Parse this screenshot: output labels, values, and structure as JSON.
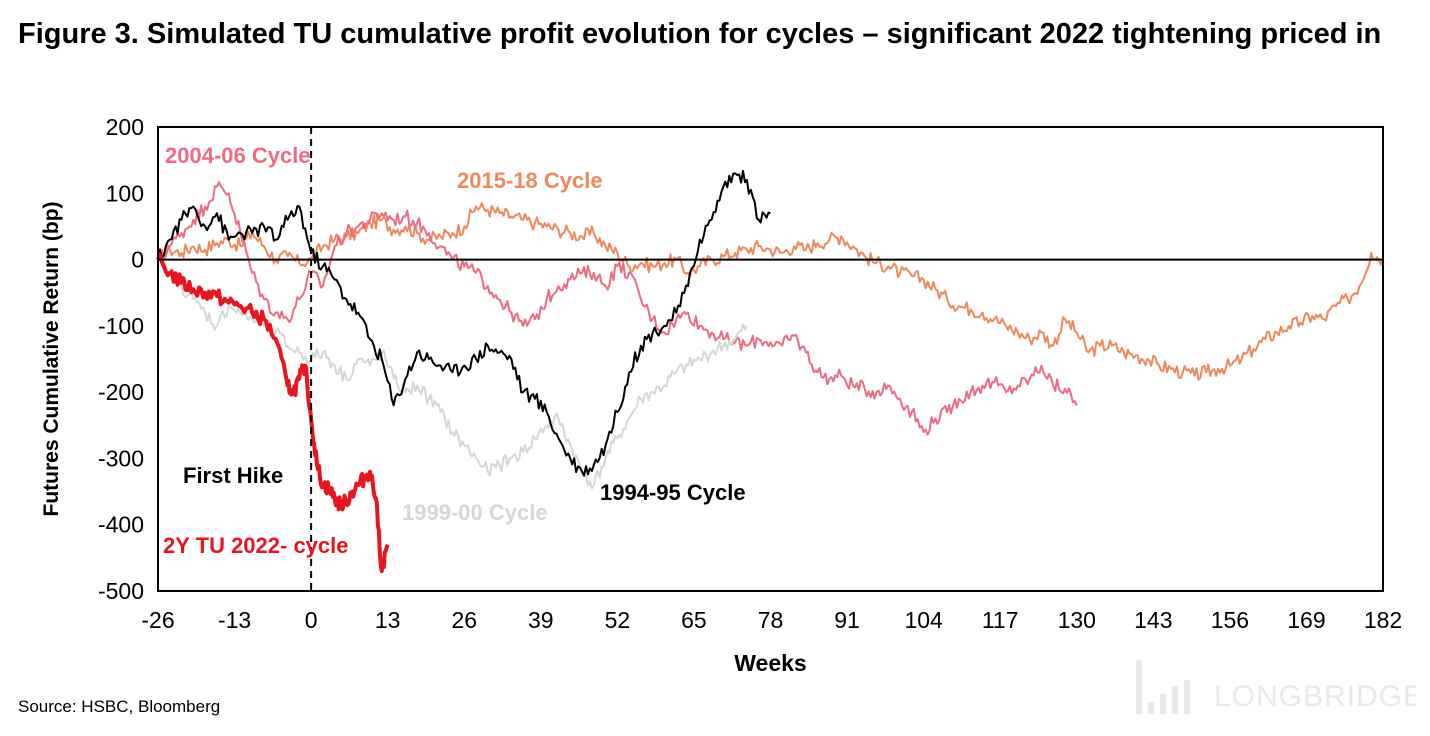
{
  "title": "Figure 3. Simulated TU cumulative profit evolution for cycles – significant 2022 tightening priced in",
  "source": "Source: HSBC, Bloomberg",
  "watermark": "LONGBRIDGE",
  "chart_data": {
    "type": "line",
    "xlabel": "Weeks",
    "ylabel": "Futures Cumulative Return (bp)",
    "xlim": [
      -26,
      182
    ],
    "ylim": [
      -500,
      200
    ],
    "xticks": [
      -26,
      -13,
      0,
      13,
      26,
      39,
      52,
      65,
      78,
      91,
      104,
      117,
      130,
      143,
      156,
      169,
      182
    ],
    "yticks": [
      200,
      100,
      0,
      -100,
      -200,
      -300,
      -400,
      -500
    ],
    "zero_line": true,
    "grid": false,
    "vline": {
      "x": 0,
      "label": "First Hike"
    },
    "series": [
      {
        "name": "2015-18 Cycle",
        "color": "#f0885e",
        "width": 2,
        "x": [
          -26,
          -24,
          -22,
          -20,
          -18,
          -16,
          -14,
          -12,
          -10,
          -8,
          -6,
          -4,
          -2,
          0,
          2,
          4,
          6,
          8,
          10,
          12,
          14,
          16,
          18,
          20,
          22,
          24,
          26,
          28,
          30,
          32,
          34,
          36,
          38,
          40,
          42,
          44,
          46,
          48,
          50,
          52,
          54,
          56,
          58,
          60,
          62,
          64,
          66,
          68,
          70,
          72,
          74,
          76,
          78,
          80,
          82,
          84,
          86,
          88,
          90,
          92,
          94,
          96,
          98,
          100,
          102,
          104,
          106,
          108,
          110,
          112,
          114,
          116,
          118,
          120,
          122,
          124,
          126,
          128,
          130,
          132,
          134,
          136,
          138,
          140,
          142,
          144,
          146,
          148,
          150,
          152,
          154,
          156,
          158,
          160,
          162,
          164,
          166,
          168,
          170,
          172,
          174,
          176,
          178,
          180,
          182
        ],
        "y": [
          0,
          15,
          10,
          20,
          15,
          25,
          30,
          20,
          40,
          20,
          0,
          5,
          -5,
          0,
          20,
          30,
          35,
          40,
          55,
          60,
          45,
          50,
          40,
          30,
          35,
          40,
          50,
          80,
          75,
          70,
          65,
          60,
          55,
          50,
          45,
          40,
          35,
          40,
          20,
          10,
          -10,
          -5,
          -10,
          -5,
          0,
          -20,
          -10,
          0,
          5,
          10,
          15,
          20,
          15,
          10,
          20,
          15,
          25,
          30,
          35,
          20,
          5,
          -5,
          -10,
          -20,
          -25,
          -30,
          -45,
          -60,
          -70,
          -75,
          -80,
          -90,
          -100,
          -110,
          -120,
          -110,
          -130,
          -90,
          -110,
          -140,
          -130,
          -130,
          -140,
          -145,
          -150,
          -160,
          -165,
          -170,
          -175,
          -170,
          -165,
          -160,
          -150,
          -135,
          -120,
          -110,
          -100,
          -95,
          -85,
          -90,
          -70,
          -60,
          -40,
          10,
          0
        ]
      },
      {
        "name": "2004-06 Cycle",
        "color": "#ee6b82",
        "width": 2,
        "x": [
          -26,
          -24,
          -22,
          -20,
          -18,
          -16,
          -14,
          -12,
          -10,
          -8,
          -6,
          -4,
          -2,
          0,
          2,
          4,
          6,
          8,
          10,
          12,
          14,
          16,
          18,
          20,
          22,
          24,
          26,
          28,
          30,
          32,
          34,
          36,
          38,
          40,
          42,
          44,
          46,
          48,
          50,
          52,
          54,
          56,
          58,
          60,
          62,
          64,
          66,
          68,
          70,
          72,
          74,
          76,
          78,
          80,
          82,
          84,
          86,
          88,
          90,
          92,
          94,
          96,
          98,
          100,
          102,
          104,
          106,
          108,
          110,
          112,
          114,
          116,
          118,
          120,
          122,
          124,
          126,
          128,
          130
        ],
        "y": [
          0,
          20,
          40,
          60,
          80,
          110,
          100,
          40,
          -20,
          -60,
          -80,
          -90,
          -60,
          -20,
          -40,
          20,
          40,
          50,
          60,
          70,
          60,
          65,
          55,
          40,
          20,
          0,
          -10,
          -20,
          -40,
          -60,
          -80,
          -100,
          -90,
          -60,
          -40,
          -30,
          -20,
          -20,
          -40,
          -10,
          -20,
          -60,
          -90,
          -110,
          -90,
          -80,
          -100,
          -110,
          -120,
          -125,
          -130,
          -120,
          -125,
          -130,
          -115,
          -140,
          -170,
          -180,
          -175,
          -190,
          -195,
          -200,
          -190,
          -210,
          -230,
          -260,
          -240,
          -230,
          -210,
          -200,
          -190,
          -185,
          -200,
          -190,
          -180,
          -160,
          -190,
          -195,
          -220
        ]
      },
      {
        "name": "1999-00 Cycle",
        "color": "#d6d6d6",
        "width": 2,
        "x": [
          -26,
          -24,
          -22,
          -20,
          -18,
          -16,
          -14,
          -12,
          -10,
          -8,
          -6,
          -4,
          -2,
          0,
          2,
          4,
          6,
          8,
          10,
          12,
          14,
          16,
          18,
          20,
          22,
          24,
          26,
          28,
          30,
          32,
          34,
          36,
          38,
          40,
          42,
          44,
          46,
          48,
          50,
          52,
          54,
          56,
          58,
          60,
          62,
          64,
          66,
          68,
          70,
          72,
          74
        ],
        "y": [
          0,
          -20,
          -40,
          -60,
          -80,
          -100,
          -70,
          -80,
          -90,
          -100,
          -110,
          -130,
          -140,
          -150,
          -140,
          -160,
          -180,
          -150,
          -160,
          -140,
          -180,
          -200,
          -190,
          -210,
          -230,
          -260,
          -280,
          -300,
          -320,
          -310,
          -300,
          -290,
          -270,
          -250,
          -240,
          -280,
          -320,
          -340,
          -300,
          -270,
          -240,
          -210,
          -200,
          -190,
          -170,
          -160,
          -150,
          -140,
          -130,
          -120,
          -100
        ]
      },
      {
        "name": "1994-95 Cycle",
        "color": "#000000",
        "width": 2,
        "x": [
          -26,
          -24,
          -22,
          -20,
          -18,
          -16,
          -14,
          -12,
          -10,
          -8,
          -6,
          -4,
          -2,
          0,
          2,
          4,
          6,
          8,
          10,
          12,
          14,
          16,
          18,
          20,
          22,
          24,
          26,
          28,
          30,
          32,
          34,
          36,
          38,
          40,
          42,
          44,
          46,
          48,
          50,
          52,
          54,
          56,
          58,
          60,
          62,
          64,
          66,
          68,
          70,
          72,
          74,
          76,
          78
        ],
        "y": [
          0,
          30,
          60,
          80,
          50,
          70,
          30,
          40,
          40,
          50,
          30,
          60,
          80,
          10,
          -10,
          -30,
          -60,
          -80,
          -120,
          -150,
          -220,
          -180,
          -140,
          -150,
          -160,
          -170,
          -160,
          -150,
          -130,
          -140,
          -150,
          -200,
          -210,
          -230,
          -270,
          -300,
          -320,
          -310,
          -280,
          -230,
          -170,
          -130,
          -110,
          -100,
          -80,
          -40,
          30,
          60,
          110,
          130,
          120,
          60,
          70
        ]
      },
      {
        "name": "2Y TU 2022- cycle",
        "color": "#e8141e",
        "width": 4,
        "x": [
          -26,
          -24,
          -22,
          -20,
          -18,
          -16,
          -14,
          -12,
          -10,
          -8,
          -6,
          -4,
          -3,
          -2,
          -1,
          0,
          1,
          2,
          3,
          4,
          5,
          6,
          7,
          8,
          9,
          10,
          11,
          12,
          13
        ],
        "y": [
          0,
          -20,
          -35,
          -45,
          -50,
          -55,
          -65,
          -70,
          -80,
          -90,
          -120,
          -190,
          -200,
          -180,
          -160,
          -240,
          -310,
          -340,
          -345,
          -360,
          -370,
          -365,
          -350,
          -340,
          -330,
          -320,
          -360,
          -470,
          -430
        ]
      }
    ],
    "annotations": [
      {
        "text": "2004-06 Cycle",
        "color": "#ee6b82"
      },
      {
        "text": "2015-18 Cycle",
        "color": "#f0885e"
      },
      {
        "text": "First Hike",
        "color": "#000000"
      },
      {
        "text": "1999-00 Cycle",
        "color": "#d6d6d6"
      },
      {
        "text": "1994-95 Cycle",
        "color": "#000000"
      },
      {
        "text": "2Y TU 2022- cycle",
        "color": "#e8141e"
      }
    ]
  }
}
